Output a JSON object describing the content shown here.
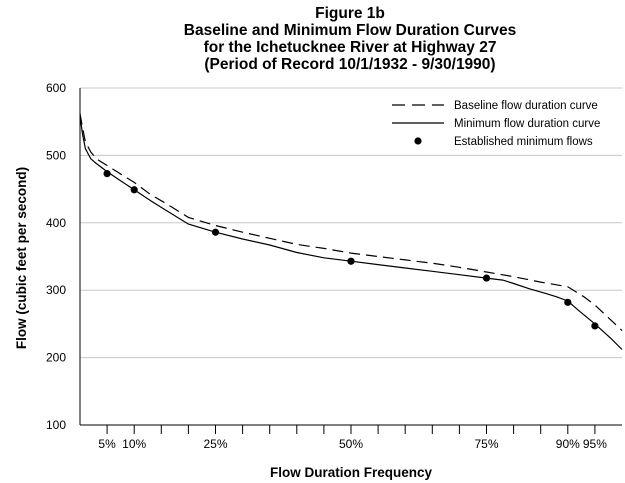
{
  "title_lines": [
    "Figure 1b",
    "Baseline and Minimum Flow Duration Curves",
    "for the Ichetucknee River at Highway 27",
    "(Period of Record 10/1/1932 - 9/30/1990)"
  ],
  "chart_data": {
    "type": "line",
    "xlabel": "Flow Duration Frequency",
    "ylabel": "Flow (cubic feet per second)",
    "ylim": [
      100,
      600
    ],
    "xlim": [
      0,
      100
    ],
    "y_ticks": [
      100,
      200,
      300,
      400,
      500,
      600
    ],
    "x_tick_labels": [
      {
        "x": 5,
        "label": "5%"
      },
      {
        "x": 10,
        "label": "10%"
      },
      {
        "x": 25,
        "label": "25%"
      },
      {
        "x": 50,
        "label": "50%"
      },
      {
        "x": 75,
        "label": "75%"
      },
      {
        "x": 90,
        "label": "90%"
      },
      {
        "x": 95,
        "label": "95%"
      }
    ],
    "x_minor_ticks": [
      5,
      10,
      15,
      20,
      25,
      30,
      35,
      40,
      45,
      50,
      55,
      60,
      65,
      70,
      75,
      80,
      85,
      90,
      95
    ],
    "grid": "horizontal",
    "legend_position": "top-right",
    "series": [
      {
        "name": "Baseline flow duration curve",
        "style": "dashed",
        "x": [
          0,
          0.5,
          1,
          2,
          3,
          5,
          7,
          10,
          13,
          16,
          20,
          25,
          30,
          35,
          40,
          45,
          50,
          55,
          60,
          65,
          70,
          75,
          80,
          85,
          90,
          93,
          95,
          97,
          100
        ],
        "y": [
          562,
          540,
          520,
          505,
          495,
          485,
          475,
          460,
          442,
          428,
          408,
          396,
          386,
          377,
          368,
          362,
          355,
          350,
          345,
          340,
          334,
          327,
          320,
          312,
          305,
          290,
          278,
          263,
          240
        ]
      },
      {
        "name": "Minimum flow duration curve",
        "style": "solid",
        "x": [
          0,
          0.5,
          1,
          2,
          3,
          5,
          7,
          10,
          13,
          16,
          20,
          25,
          30,
          35,
          40,
          45,
          50,
          55,
          60,
          65,
          70,
          75,
          78,
          80,
          83,
          86,
          88,
          90,
          92,
          95,
          98,
          100
        ],
        "y": [
          558,
          530,
          510,
          495,
          488,
          476,
          465,
          449,
          433,
          418,
          398,
          386,
          376,
          367,
          356,
          348,
          343,
          338,
          333,
          328,
          323,
          318,
          315,
          310,
          302,
          295,
          290,
          284,
          270,
          250,
          228,
          212
        ]
      }
    ],
    "markers": {
      "name": "Established minimum flows",
      "x": [
        5,
        10,
        25,
        50,
        75,
        90,
        95
      ],
      "y": [
        473,
        449,
        386,
        343,
        318,
        282,
        247
      ]
    },
    "colors": {
      "line": "#000000",
      "grid": "#c8c8c8",
      "background": "#ffffff"
    }
  }
}
